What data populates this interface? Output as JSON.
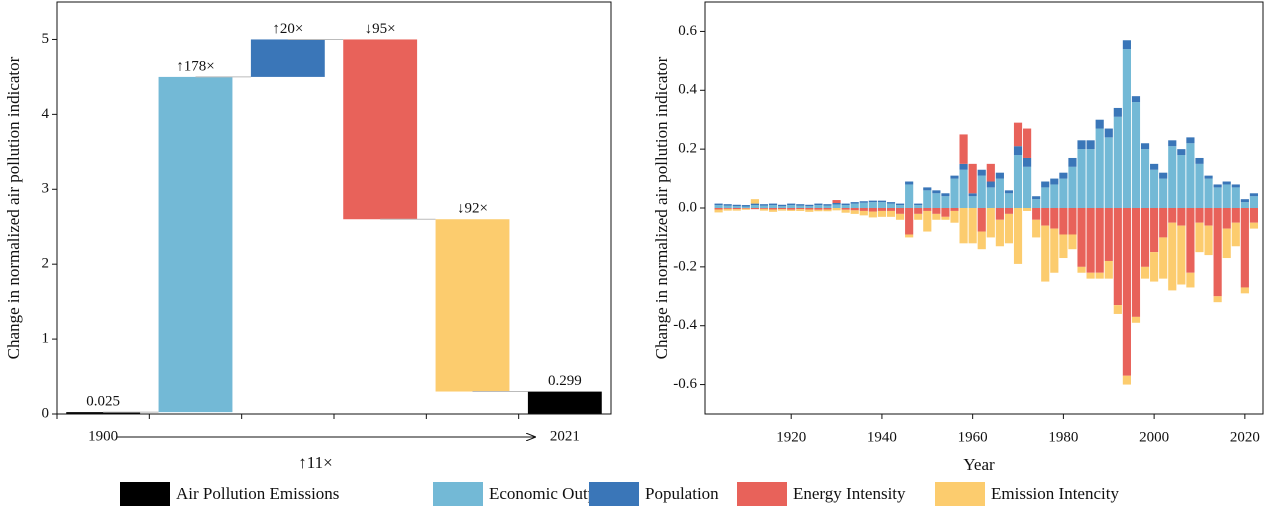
{
  "chart_data": [
    {
      "type": "waterfall",
      "ylabel": "Change in normalized air pollution indicator",
      "categories": [
        "1900",
        null,
        null,
        null,
        null,
        "2021"
      ],
      "measure": [
        "absolute",
        "relative",
        "relative",
        "relative",
        "relative",
        "absolute"
      ],
      "values": [
        0.025,
        4.475,
        0.5,
        -2.4,
        -2.3,
        0.299
      ],
      "bar_labels": [
        "0.025",
        "↑178×",
        "↑20×",
        "↓95×",
        "↓92×",
        "0.299"
      ],
      "colors": [
        "#000000",
        "#73b9d6",
        "#3a76b8",
        "#e8625a",
        "#fccc6e",
        "#000000"
      ],
      "total_label": "↑11×",
      "ylim": [
        0,
        5.5
      ],
      "yticks": [
        0,
        1,
        2,
        3,
        4,
        5
      ]
    },
    {
      "type": "bar",
      "stacked": true,
      "ylabel": "Change in normalized air pollution indicator",
      "xlabel": "Year",
      "x": [
        1904,
        1906,
        1908,
        1910,
        1912,
        1914,
        1916,
        1918,
        1920,
        1922,
        1924,
        1926,
        1928,
        1930,
        1932,
        1934,
        1936,
        1938,
        1940,
        1942,
        1944,
        1946,
        1948,
        1950,
        1952,
        1954,
        1956,
        1958,
        1960,
        1962,
        1964,
        1966,
        1968,
        1970,
        1972,
        1974,
        1976,
        1978,
        1980,
        1982,
        1984,
        1986,
        1988,
        1990,
        1992,
        1994,
        1996,
        1998,
        2000,
        2002,
        2004,
        2006,
        2008,
        2010,
        2012,
        2014,
        2016,
        2018,
        2020,
        2022
      ],
      "series": [
        {
          "name": "Economic Output",
          "color": "#73b9d6",
          "values": [
            0.01,
            0.008,
            0.006,
            0.005,
            0.01,
            0.008,
            0.01,
            0.006,
            0.01,
            0.008,
            0.006,
            0.01,
            0.008,
            0.012,
            0.01,
            0.015,
            0.018,
            0.02,
            0.02,
            0.015,
            0.01,
            0.08,
            0.01,
            0.06,
            0.05,
            0.04,
            0.1,
            0.13,
            0.04,
            0.11,
            0.07,
            0.1,
            0.05,
            0.18,
            0.14,
            0.03,
            0.07,
            0.08,
            0.1,
            0.14,
            0.2,
            0.2,
            0.27,
            0.24,
            0.31,
            0.54,
            0.36,
            0.2,
            0.13,
            0.1,
            0.21,
            0.18,
            0.22,
            0.15,
            0.1,
            0.07,
            0.08,
            0.07,
            0.02,
            0.04
          ]
        },
        {
          "name": "Population",
          "color": "#3a76b8",
          "values": [
            0.005,
            0.005,
            0.005,
            0.005,
            0.005,
            0.005,
            0.005,
            0.005,
            0.005,
            0.005,
            0.005,
            0.005,
            0.005,
            0.005,
            0.005,
            0.005,
            0.005,
            0.005,
            0.005,
            0.005,
            0.005,
            0.01,
            0.005,
            0.01,
            0.01,
            0.01,
            0.01,
            0.02,
            0.01,
            0.02,
            0.02,
            0.02,
            0.01,
            0.03,
            0.03,
            0.01,
            0.02,
            0.02,
            0.02,
            0.03,
            0.03,
            0.03,
            0.03,
            0.03,
            0.03,
            0.03,
            0.02,
            0.02,
            0.02,
            0.02,
            0.02,
            0.02,
            0.02,
            0.02,
            0.01,
            0.01,
            0.01,
            0.01,
            0.01,
            0.01
          ]
        },
        {
          "name": "Energy Intensity",
          "color": "#e8625a",
          "values": [
            -0.005,
            -0.003,
            -0.004,
            -0.002,
            -0.004,
            -0.003,
            -0.005,
            -0.004,
            -0.006,
            -0.004,
            -0.005,
            -0.006,
            -0.005,
            0.01,
            -0.006,
            -0.008,
            -0.01,
            -0.012,
            -0.01,
            -0.01,
            -0.02,
            -0.09,
            -0.02,
            -0.01,
            -0.02,
            -0.03,
            -0.01,
            0.1,
            0.1,
            -0.08,
            0.06,
            -0.04,
            -0.02,
            0.08,
            0.1,
            -0.04,
            -0.06,
            -0.07,
            -0.09,
            -0.09,
            -0.2,
            -0.22,
            -0.22,
            -0.18,
            -0.33,
            -0.57,
            -0.37,
            -0.2,
            -0.15,
            -0.1,
            -0.05,
            -0.06,
            -0.22,
            -0.05,
            -0.06,
            -0.3,
            -0.07,
            -0.05,
            -0.27,
            -0.05
          ]
        },
        {
          "name": "Emission Intencity",
          "color": "#fccc6e",
          "values": [
            -0.01,
            -0.006,
            -0.005,
            -0.004,
            0.015,
            -0.006,
            -0.008,
            -0.005,
            -0.004,
            -0.006,
            -0.008,
            -0.005,
            -0.006,
            -0.008,
            -0.01,
            -0.012,
            -0.015,
            -0.02,
            -0.02,
            -0.02,
            -0.02,
            -0.01,
            -0.02,
            -0.07,
            -0.02,
            -0.01,
            -0.04,
            -0.12,
            -0.12,
            -0.06,
            -0.1,
            -0.09,
            -0.1,
            -0.19,
            -0.01,
            -0.06,
            -0.19,
            -0.15,
            -0.08,
            -0.05,
            -0.02,
            -0.02,
            -0.02,
            -0.06,
            -0.03,
            -0.03,
            -0.02,
            -0.04,
            -0.1,
            -0.14,
            -0.23,
            -0.2,
            -0.05,
            -0.1,
            -0.1,
            -0.02,
            -0.1,
            -0.08,
            -0.02,
            -0.02
          ]
        }
      ],
      "xlim": [
        1901,
        2024
      ],
      "xticks": [
        1920,
        1940,
        1960,
        1980,
        2000,
        2020
      ],
      "ylim": [
        -0.7,
        0.7
      ],
      "yticks": [
        -0.6,
        -0.4,
        -0.2,
        {
          "value": 0,
          "label": "0.0"
        },
        0.2,
        0.4,
        0.6
      ]
    }
  ],
  "legend": [
    {
      "name": "Air Pollution Emissions",
      "color": "#000000"
    },
    {
      "name": "Economic Output",
      "color": "#73b9d6"
    },
    {
      "name": "Population",
      "color": "#3a76b8"
    },
    {
      "name": "Energy Intensity",
      "color": "#e8625a"
    },
    {
      "name": "Emission Intencity",
      "color": "#fccc6e"
    }
  ]
}
